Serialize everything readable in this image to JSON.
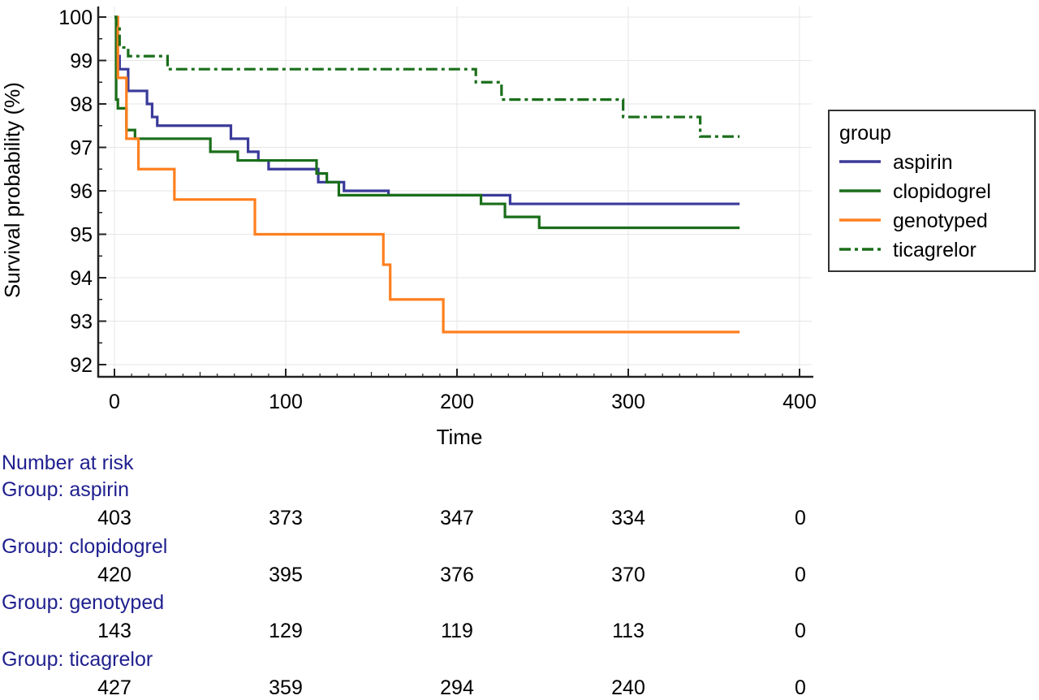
{
  "chart_data": {
    "type": "line",
    "subtype": "kaplan-meier step",
    "xlabel": "Time",
    "ylabel": "Survival probability (%)",
    "xlim": [
      0,
      400
    ],
    "ylim": [
      92,
      100
    ],
    "xticks": [
      0,
      100,
      200,
      300,
      400
    ],
    "yticks": [
      92,
      93,
      94,
      95,
      96,
      97,
      98,
      99,
      100
    ],
    "grid": true,
    "legend_title": "group",
    "legend_position": "right",
    "series": [
      {
        "name": "aspirin",
        "color": "#3a3a9a",
        "dash": "solid",
        "steps": [
          [
            0,
            100
          ],
          [
            1,
            99.1
          ],
          [
            3,
            98.8
          ],
          [
            8,
            98.3
          ],
          [
            19,
            98.0
          ],
          [
            22,
            97.7
          ],
          [
            25,
            97.5
          ],
          [
            68,
            97.2
          ],
          [
            72,
            97.2
          ],
          [
            78,
            96.9
          ],
          [
            84,
            96.7
          ],
          [
            90,
            96.5
          ],
          [
            119,
            96.2
          ],
          [
            134,
            96.0
          ],
          [
            160,
            95.9
          ],
          [
            231,
            95.7
          ],
          [
            365,
            95.7
          ]
        ]
      },
      {
        "name": "clopidogrel",
        "color": "#1a6e1a",
        "dash": "solid",
        "steps": [
          [
            0,
            100
          ],
          [
            1,
            98.1
          ],
          [
            2,
            97.9
          ],
          [
            7,
            97.4
          ],
          [
            12,
            97.2
          ],
          [
            56,
            96.9
          ],
          [
            72,
            96.7
          ],
          [
            84,
            96.7
          ],
          [
            118,
            96.4
          ],
          [
            124,
            96.2
          ],
          [
            131,
            95.9
          ],
          [
            214,
            95.7
          ],
          [
            228,
            95.4
          ],
          [
            248,
            95.15
          ],
          [
            365,
            95.15
          ]
        ]
      },
      {
        "name": "genotyped",
        "color": "#ff7f1e",
        "dash": "solid",
        "steps": [
          [
            0,
            100
          ],
          [
            2,
            98.6
          ],
          [
            7,
            97.2
          ],
          [
            14,
            96.5
          ],
          [
            35,
            95.8
          ],
          [
            82,
            95.0
          ],
          [
            157,
            94.3
          ],
          [
            161,
            93.5
          ],
          [
            192,
            92.75
          ],
          [
            365,
            92.75
          ]
        ]
      },
      {
        "name": "ticagrelor",
        "color": "#1a6e1a",
        "dash": "dashdot",
        "steps": [
          [
            0,
            100
          ],
          [
            1,
            99.8
          ],
          [
            3,
            99.3
          ],
          [
            8,
            99.1
          ],
          [
            31,
            98.8
          ],
          [
            211,
            98.5
          ],
          [
            226,
            98.1
          ],
          [
            297,
            97.7
          ],
          [
            342,
            97.25
          ],
          [
            365,
            97.25
          ]
        ]
      }
    ],
    "risk_table": {
      "title": "Number at risk",
      "times": [
        0,
        100,
        200,
        300,
        400
      ],
      "groups": [
        {
          "label": "Group: aspirin",
          "counts": [
            "403",
            "373",
            "347",
            "334",
            "0"
          ]
        },
        {
          "label": "Group: clopidogrel",
          "counts": [
            "420",
            "395",
            "376",
            "370",
            "0"
          ]
        },
        {
          "label": "Group: genotyped",
          "counts": [
            "143",
            "129",
            "119",
            "113",
            "0"
          ]
        },
        {
          "label": "Group: ticagrelor",
          "counts": [
            "427",
            "359",
            "294",
            "240",
            "0"
          ]
        }
      ]
    }
  }
}
